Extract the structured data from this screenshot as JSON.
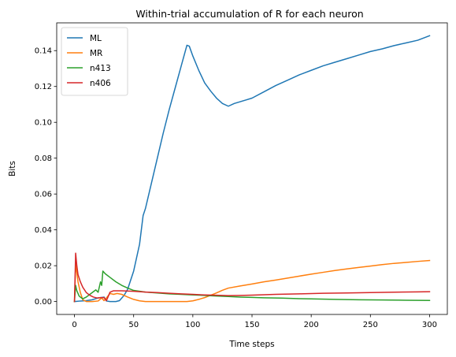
{
  "chart_data": {
    "type": "line",
    "title": "Within-trial accumulation of R for each neuron",
    "xlabel": "Time steps",
    "ylabel": "Bits",
    "xlim": [
      -15,
      315
    ],
    "ylim": [
      -0.0072,
      0.1555
    ],
    "x_ticks": [
      0,
      50,
      100,
      150,
      200,
      250,
      300
    ],
    "y_ticks": [
      0.0,
      0.02,
      0.04,
      0.06,
      0.08,
      0.1,
      0.12,
      0.14
    ],
    "y_tick_labels": [
      "0.00",
      "0.02",
      "0.04",
      "0.06",
      "0.08",
      "0.10",
      "0.12",
      "0.14"
    ],
    "grid": false,
    "legend_position": "top-left",
    "series": [
      {
        "name": "ML",
        "color": "#1f77b4",
        "points": [
          [
            0,
            0.0
          ],
          [
            5,
            0.0003
          ],
          [
            10,
            0.0005
          ],
          [
            15,
            0.001
          ],
          [
            20,
            0.002
          ],
          [
            25,
            0.0025
          ],
          [
            27,
            0.0003
          ],
          [
            30,
            0.0
          ],
          [
            35,
            0.0
          ],
          [
            38,
            0.0005
          ],
          [
            40,
            0.002
          ],
          [
            42,
            0.0035
          ],
          [
            45,
            0.007
          ],
          [
            50,
            0.017
          ],
          [
            55,
            0.032
          ],
          [
            58,
            0.048
          ],
          [
            60,
            0.052
          ],
          [
            65,
            0.066
          ],
          [
            70,
            0.08
          ],
          [
            75,
            0.094
          ],
          [
            80,
            0.107
          ],
          [
            85,
            0.119
          ],
          [
            90,
            0.131
          ],
          [
            95,
            0.143
          ],
          [
            97,
            0.1425
          ],
          [
            100,
            0.137
          ],
          [
            105,
            0.129
          ],
          [
            110,
            0.122
          ],
          [
            115,
            0.1175
          ],
          [
            120,
            0.1135
          ],
          [
            125,
            0.1105
          ],
          [
            130,
            0.109
          ],
          [
            135,
            0.1105
          ],
          [
            140,
            0.1115
          ],
          [
            145,
            0.1125
          ],
          [
            150,
            0.1135
          ],
          [
            160,
            0.117
          ],
          [
            170,
            0.1205
          ],
          [
            180,
            0.1235
          ],
          [
            190,
            0.1265
          ],
          [
            200,
            0.129
          ],
          [
            210,
            0.1315
          ],
          [
            220,
            0.1335
          ],
          [
            230,
            0.1355
          ],
          [
            240,
            0.1375
          ],
          [
            250,
            0.1395
          ],
          [
            260,
            0.141
          ],
          [
            270,
            0.1428
          ],
          [
            280,
            0.1443
          ],
          [
            290,
            0.1458
          ],
          [
            300,
            0.1483
          ]
        ]
      },
      {
        "name": "MR",
        "color": "#ff7f0e",
        "points": [
          [
            0,
            0.0
          ],
          [
            1,
            0.021
          ],
          [
            2,
            0.016
          ],
          [
            3,
            0.011
          ],
          [
            5,
            0.005
          ],
          [
            7,
            0.001
          ],
          [
            10,
            0.0
          ],
          [
            15,
            0.0
          ],
          [
            20,
            0.0003
          ],
          [
            23,
            0.002
          ],
          [
            25,
            0.0005
          ],
          [
            27,
            0.002
          ],
          [
            30,
            0.0045
          ],
          [
            33,
            0.004
          ],
          [
            36,
            0.0045
          ],
          [
            40,
            0.004
          ],
          [
            45,
            0.0025
          ],
          [
            50,
            0.0012
          ],
          [
            55,
            0.0004
          ],
          [
            60,
            0.0
          ],
          [
            70,
            0.0
          ],
          [
            80,
            0.0
          ],
          [
            95,
            0.0
          ],
          [
            100,
            0.0004
          ],
          [
            105,
            0.0012
          ],
          [
            110,
            0.0022
          ],
          [
            115,
            0.0035
          ],
          [
            120,
            0.0048
          ],
          [
            125,
            0.0063
          ],
          [
            130,
            0.0075
          ],
          [
            140,
            0.0087
          ],
          [
            150,
            0.0098
          ],
          [
            160,
            0.011
          ],
          [
            170,
            0.012
          ],
          [
            180,
            0.0131
          ],
          [
            190,
            0.0142
          ],
          [
            200,
            0.0153
          ],
          [
            210,
            0.0163
          ],
          [
            220,
            0.0173
          ],
          [
            230,
            0.0182
          ],
          [
            240,
            0.019
          ],
          [
            250,
            0.0198
          ],
          [
            260,
            0.0206
          ],
          [
            270,
            0.0213
          ],
          [
            280,
            0.0218
          ],
          [
            290,
            0.0224
          ],
          [
            300,
            0.0229
          ]
        ]
      },
      {
        "name": "n413",
        "color": "#2ca02c",
        "points": [
          [
            0,
            0.0
          ],
          [
            1,
            0.009
          ],
          [
            2,
            0.006
          ],
          [
            4,
            0.003
          ],
          [
            7,
            0.0015
          ],
          [
            10,
            0.0025
          ],
          [
            13,
            0.004
          ],
          [
            15,
            0.005
          ],
          [
            18,
            0.0065
          ],
          [
            20,
            0.0052
          ],
          [
            22,
            0.011
          ],
          [
            23,
            0.009
          ],
          [
            24,
            0.017
          ],
          [
            26,
            0.0155
          ],
          [
            30,
            0.0135
          ],
          [
            35,
            0.011
          ],
          [
            40,
            0.009
          ],
          [
            45,
            0.0075
          ],
          [
            50,
            0.0062
          ],
          [
            60,
            0.0053
          ],
          [
            70,
            0.0048
          ],
          [
            80,
            0.0043
          ],
          [
            90,
            0.004
          ],
          [
            100,
            0.0037
          ],
          [
            110,
            0.0034
          ],
          [
            120,
            0.0031
          ],
          [
            130,
            0.0028
          ],
          [
            140,
            0.0025
          ],
          [
            150,
            0.0023
          ],
          [
            160,
            0.0021
          ],
          [
            175,
            0.0019
          ],
          [
            190,
            0.0016
          ],
          [
            200,
            0.0015
          ],
          [
            220,
            0.0012
          ],
          [
            240,
            0.001
          ],
          [
            260,
            0.0009
          ],
          [
            280,
            0.0007
          ],
          [
            300,
            0.0006
          ]
        ]
      },
      {
        "name": "n406",
        "color": "#d62728",
        "points": [
          [
            0,
            0.0
          ],
          [
            1,
            0.027
          ],
          [
            2,
            0.02
          ],
          [
            3,
            0.015
          ],
          [
            5,
            0.011
          ],
          [
            7,
            0.008
          ],
          [
            10,
            0.005
          ],
          [
            13,
            0.0035
          ],
          [
            16,
            0.0025
          ],
          [
            19,
            0.002
          ],
          [
            22,
            0.0022
          ],
          [
            25,
            0.0022
          ],
          [
            27,
            0.0005
          ],
          [
            28,
            0.002
          ],
          [
            30,
            0.0052
          ],
          [
            33,
            0.006
          ],
          [
            40,
            0.006
          ],
          [
            50,
            0.0057
          ],
          [
            60,
            0.0053
          ],
          [
            70,
            0.005
          ],
          [
            80,
            0.0046
          ],
          [
            90,
            0.0043
          ],
          [
            100,
            0.004
          ],
          [
            110,
            0.0037
          ],
          [
            120,
            0.0035
          ],
          [
            130,
            0.0033
          ],
          [
            140,
            0.0034
          ],
          [
            150,
            0.0036
          ],
          [
            170,
            0.004
          ],
          [
            190,
            0.0043
          ],
          [
            210,
            0.0046
          ],
          [
            230,
            0.0048
          ],
          [
            250,
            0.005
          ],
          [
            270,
            0.0052
          ],
          [
            290,
            0.0054
          ],
          [
            300,
            0.0055
          ]
        ]
      }
    ]
  }
}
